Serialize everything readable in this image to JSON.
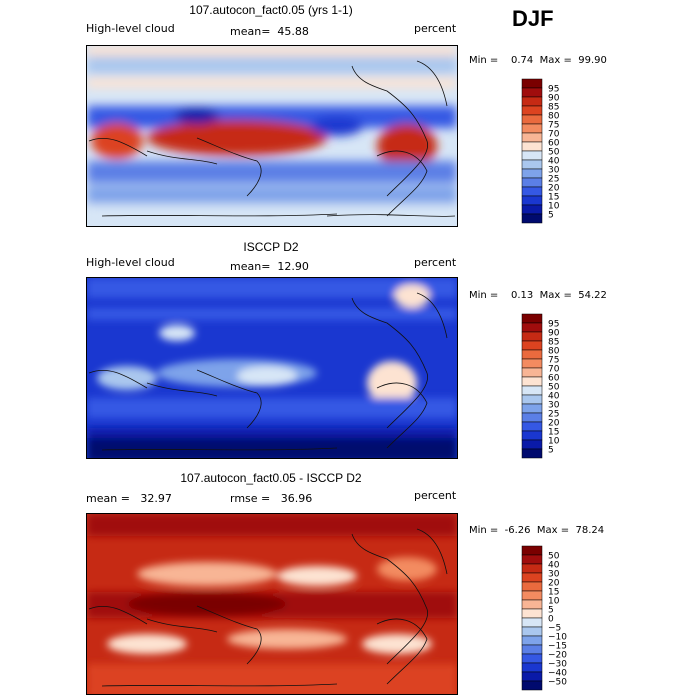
{
  "season": "DJF",
  "panels": [
    {
      "title": "107.autocon_fact0.05 (yrs 1-1)",
      "left_label": "High-level cloud",
      "mid_label": "mean=  45.88",
      "unit": "percent",
      "minmax": "Min =    0.74  Max =  99.90",
      "colorbar": {
        "levels": [
          "95",
          "90",
          "85",
          "80",
          "75",
          "70",
          "60",
          "50",
          "40",
          "30",
          "25",
          "20",
          "15",
          "10",
          "5"
        ],
        "colors": [
          "#7a0000",
          "#a00d0d",
          "#c62a14",
          "#dc4320",
          "#ea6a3e",
          "#f38b60",
          "#f8b595",
          "#fde3d2",
          "#d7e6f6",
          "#aac7ee",
          "#7ea3ea",
          "#5b7fe6",
          "#3558e4",
          "#1a37d0",
          "#0a1aa8",
          "#000a6e"
        ]
      }
    },
    {
      "title": "ISCCP D2",
      "left_label": "High-level cloud",
      "mid_label": "mean=  12.90",
      "unit": "percent",
      "minmax": "Min =    0.13  Max =  54.22",
      "colorbar": {
        "levels": [
          "95",
          "90",
          "85",
          "80",
          "75",
          "70",
          "60",
          "50",
          "40",
          "30",
          "25",
          "20",
          "15",
          "10",
          "5"
        ],
        "colors": [
          "#7a0000",
          "#a00d0d",
          "#c62a14",
          "#dc4320",
          "#ea6a3e",
          "#f38b60",
          "#f8b595",
          "#fde3d2",
          "#d7e6f6",
          "#aac7ee",
          "#7ea3ea",
          "#5b7fe6",
          "#3558e4",
          "#1a37d0",
          "#0a1aa8",
          "#000a6e"
        ]
      }
    },
    {
      "title": "107.autocon_fact0.05 - ISCCP D2",
      "left_label": "mean =   32.97",
      "mid_label": "rmse =   36.96",
      "unit": "percent",
      "minmax": "Min =  -6.26  Max =  78.24",
      "colorbar": {
        "levels": [
          "50",
          "40",
          "30",
          "20",
          "15",
          "10",
          "5",
          "0",
          "−5",
          "−10",
          "−15",
          "−20",
          "−30",
          "−40",
          "−50"
        ],
        "colors": [
          "#7a0000",
          "#a00d0d",
          "#c62a14",
          "#dc4320",
          "#ea6a3e",
          "#f38b60",
          "#f8b595",
          "#fde3d2",
          "#d7e6f6",
          "#aac7ee",
          "#7ea3ea",
          "#5b7fe6",
          "#3558e4",
          "#1a37d0",
          "#0a1aa8",
          "#000a6e"
        ]
      }
    }
  ],
  "chart_data": [
    {
      "type": "heatmap",
      "title": "107.autocon_fact0.05 (yrs 1-1)",
      "field": "High-level cloud",
      "unit": "percent",
      "mean": 45.88,
      "min": 0.74,
      "max": 99.9,
      "contour_levels": [
        5,
        10,
        15,
        20,
        25,
        30,
        40,
        50,
        60,
        70,
        75,
        80,
        85,
        90,
        95
      ]
    },
    {
      "type": "heatmap",
      "title": "ISCCP D2",
      "field": "High-level cloud",
      "unit": "percent",
      "mean": 12.9,
      "min": 0.13,
      "max": 54.22,
      "contour_levels": [
        5,
        10,
        15,
        20,
        25,
        30,
        40,
        50,
        60,
        70,
        75,
        80,
        85,
        90,
        95
      ]
    },
    {
      "type": "heatmap",
      "title": "107.autocon_fact0.05 - ISCCP D2",
      "unit": "percent",
      "mean": 32.97,
      "rmse": 36.96,
      "min": -6.26,
      "max": 78.24,
      "contour_levels": [
        -50,
        -40,
        -30,
        -20,
        -15,
        -10,
        -5,
        0,
        5,
        10,
        15,
        20,
        30,
        40,
        50
      ]
    }
  ]
}
